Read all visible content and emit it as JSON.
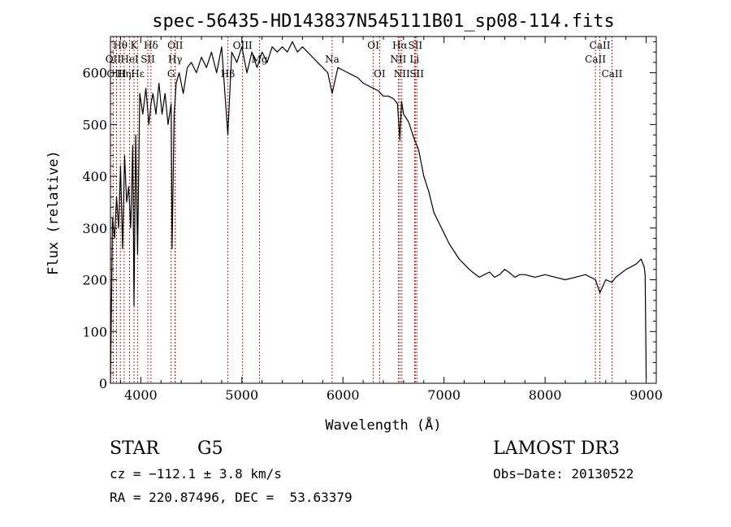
{
  "chart_data": {
    "type": "line",
    "title": "spec-56435-HD143837N545111B01_sp08-114.fits",
    "xlabel": "Wavelength (Å)",
    "ylabel": "Flux (relative)",
    "xlim": [
      3700,
      9100
    ],
    "ylim": [
      0,
      670
    ],
    "xticks": [
      4000,
      5000,
      6000,
      7000,
      8000,
      9000
    ],
    "yticks": [
      0,
      100,
      200,
      300,
      400,
      500,
      600
    ],
    "grid": false,
    "line_color": "#000000",
    "marker_color": "#b22222",
    "series": [
      {
        "x": [
          3700,
          3710,
          3720,
          3740,
          3760,
          3780,
          3800,
          3820,
          3840,
          3860,
          3880,
          3900,
          3920,
          3933,
          3950,
          3968,
          3990,
          4020,
          4050,
          4080,
          4101,
          4120,
          4150,
          4180,
          4210,
          4240,
          4270,
          4300,
          4310,
          4330,
          4350,
          4380,
          4420,
          4460,
          4500,
          4550,
          4600,
          4650,
          4700,
          4750,
          4800,
          4861,
          4900,
          4950,
          5000,
          5050,
          5100,
          5150,
          5200,
          5250,
          5300,
          5350,
          5400,
          5450,
          5500,
          5550,
          5600,
          5650,
          5700,
          5750,
          5800,
          5850,
          5893,
          5950,
          6000,
          6050,
          6100,
          6150,
          6200,
          6250,
          6300,
          6350,
          6400,
          6450,
          6500,
          6540,
          6563,
          6580,
          6600,
          6650,
          6700,
          6750,
          6800,
          6850,
          6900,
          6950,
          7000,
          7050,
          7100,
          7150,
          7200,
          7250,
          7300,
          7350,
          7400,
          7450,
          7500,
          7550,
          7600,
          7640,
          7700,
          7750,
          7800,
          7900,
          8000,
          8100,
          8200,
          8300,
          8400,
          8498,
          8542,
          8600,
          8662,
          8700,
          8800,
          8900,
          8950,
          8980,
          8990,
          9000
        ],
        "y": [
          0,
          150,
          320,
          280,
          360,
          300,
          420,
          260,
          440,
          350,
          380,
          300,
          460,
          150,
          480,
          250,
          560,
          520,
          570,
          500,
          540,
          560,
          520,
          580,
          520,
          560,
          500,
          540,
          260,
          520,
          580,
          600,
          560,
          610,
          620,
          600,
          630,
          610,
          640,
          600,
          650,
          480,
          640,
          620,
          650,
          600,
          640,
          610,
          640,
          620,
          650,
          640,
          650,
          640,
          660,
          640,
          650,
          640,
          630,
          620,
          610,
          600,
          560,
          610,
          605,
          600,
          595,
          590,
          580,
          575,
          570,
          565,
          555,
          555,
          550,
          540,
          470,
          545,
          520,
          505,
          475,
          450,
          400,
          370,
          330,
          310,
          290,
          270,
          255,
          240,
          230,
          220,
          212,
          205,
          210,
          215,
          205,
          210,
          220,
          215,
          205,
          210,
          210,
          205,
          210,
          205,
          200,
          205,
          210,
          200,
          175,
          200,
          195,
          205,
          220,
          230,
          240,
          225,
          210,
          10
        ]
      }
    ],
    "line_markers": [
      {
        "label": "Hθ",
        "x": 3798,
        "row": 0
      },
      {
        "label": "K",
        "x": 3933,
        "row": 0
      },
      {
        "label": "Hδ",
        "x": 4101,
        "row": 0
      },
      {
        "label": "OII",
        "x": 4341,
        "row": 0
      },
      {
        "label": "OIII",
        "x": 5007,
        "row": 0
      },
      {
        "label": "OI",
        "x": 6300,
        "row": 0
      },
      {
        "label": "Hα",
        "x": 6563,
        "row": 0
      },
      {
        "label": "SII",
        "x": 6716,
        "row": 0
      },
      {
        "label": "CaII",
        "x": 8542,
        "row": 0
      },
      {
        "label": "OII",
        "x": 3727,
        "row": 1
      },
      {
        "label": "HeI",
        "x": 3889,
        "row": 1
      },
      {
        "label": "SII",
        "x": 4070,
        "row": 1
      },
      {
        "label": "Hγ",
        "x": 4340,
        "row": 1
      },
      {
        "label": "Mg",
        "x": 5175,
        "row": 1
      },
      {
        "label": "Na",
        "x": 5893,
        "row": 1
      },
      {
        "label": "NII",
        "x": 6548,
        "row": 1
      },
      {
        "label": "Li",
        "x": 6708,
        "row": 1
      },
      {
        "label": "CaII",
        "x": 8498,
        "row": 1
      },
      {
        "label": "OIII",
        "x": 3760,
        "row": 2
      },
      {
        "label": "Hη",
        "x": 3835,
        "row": 2
      },
      {
        "label": "Hε",
        "x": 3970,
        "row": 2
      },
      {
        "label": "G",
        "x": 4300,
        "row": 2
      },
      {
        "label": "Hβ",
        "x": 4861,
        "row": 2
      },
      {
        "label": "OI",
        "x": 6363,
        "row": 2
      },
      {
        "label": "NII",
        "x": 6583,
        "row": 2
      },
      {
        "label": "SII",
        "x": 6731,
        "row": 2
      },
      {
        "label": "CaII",
        "x": 8662,
        "row": 2
      }
    ]
  },
  "info": {
    "object_class": "STAR",
    "subclass": "G5",
    "survey": "LAMOST DR3",
    "redshift": "cz = −112.1 ± 3.8 km/s",
    "obs_date": "Obs−Date: 20130522",
    "coords": "RA = 220.87496, DEC =  53.63379"
  }
}
